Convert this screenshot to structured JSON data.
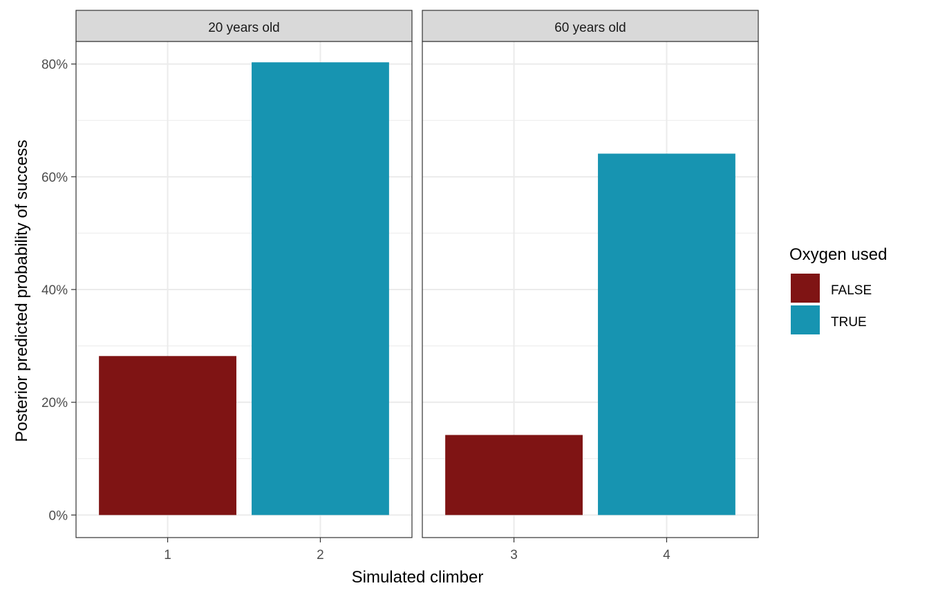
{
  "chart_data": {
    "type": "bar",
    "facet_strip_position": "top",
    "ylim": [
      -0.04,
      0.84
    ],
    "yticks": [
      0,
      0.2,
      0.4,
      0.6,
      0.8
    ],
    "ytick_labels": [
      "0%",
      "20%",
      "40%",
      "60%",
      "80%"
    ],
    "xlabel": "Simulated climber",
    "ylabel": "Posterior predicted probability of success",
    "grid": true,
    "legend": {
      "title": "Oxygen used",
      "position": "right",
      "entries": [
        {
          "label": "FALSE",
          "color": "#7f1414"
        },
        {
          "label": "TRUE",
          "color": "#1794b1"
        }
      ]
    },
    "panels": [
      {
        "strip": "20 years old",
        "categories": [
          "1",
          "2"
        ],
        "values": [
          0.282,
          0.803
        ],
        "oxygen": [
          "FALSE",
          "TRUE"
        ]
      },
      {
        "strip": "60 years old",
        "categories": [
          "3",
          "4"
        ],
        "values": [
          0.142,
          0.641
        ],
        "oxygen": [
          "FALSE",
          "TRUE"
        ]
      }
    ]
  }
}
